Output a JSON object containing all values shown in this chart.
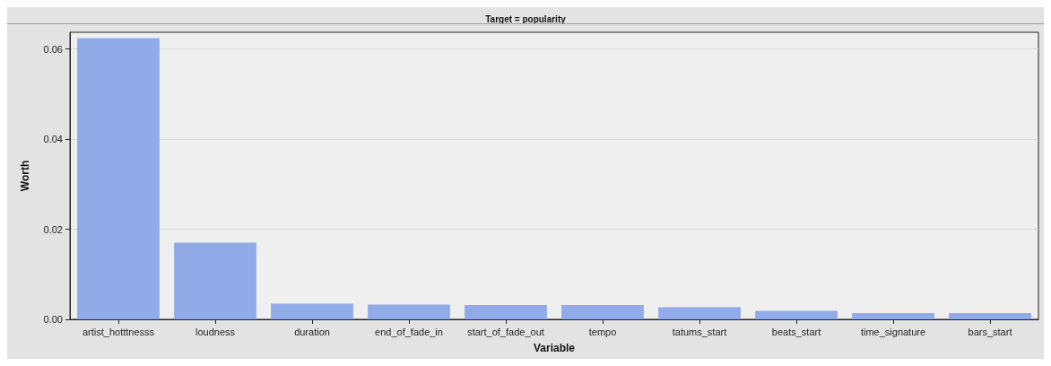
{
  "chart_data": {
    "type": "bar",
    "title": "Target = popularity",
    "xlabel": "Variable",
    "ylabel": "Worth",
    "categories": [
      "artist_hotttnesss",
      "loudness",
      "duration",
      "end_of_fade_in",
      "start_of_fade_out",
      "tempo",
      "tatums_start",
      "beats_start",
      "time_signature",
      "bars_start"
    ],
    "values": [
      0.0624,
      0.017,
      0.0035,
      0.0033,
      0.0032,
      0.0032,
      0.0027,
      0.0019,
      0.0014,
      0.0014
    ],
    "color": "#90abe8",
    "ylim": [
      0,
      0.0637
    ],
    "yticks": [
      {
        "value": 0,
        "label": "0.00"
      },
      {
        "value": 0.02,
        "label": "0.02"
      },
      {
        "value": 0.04,
        "label": "0.04"
      },
      {
        "value": 0.06,
        "label": "0.06"
      }
    ],
    "grid": "y"
  }
}
